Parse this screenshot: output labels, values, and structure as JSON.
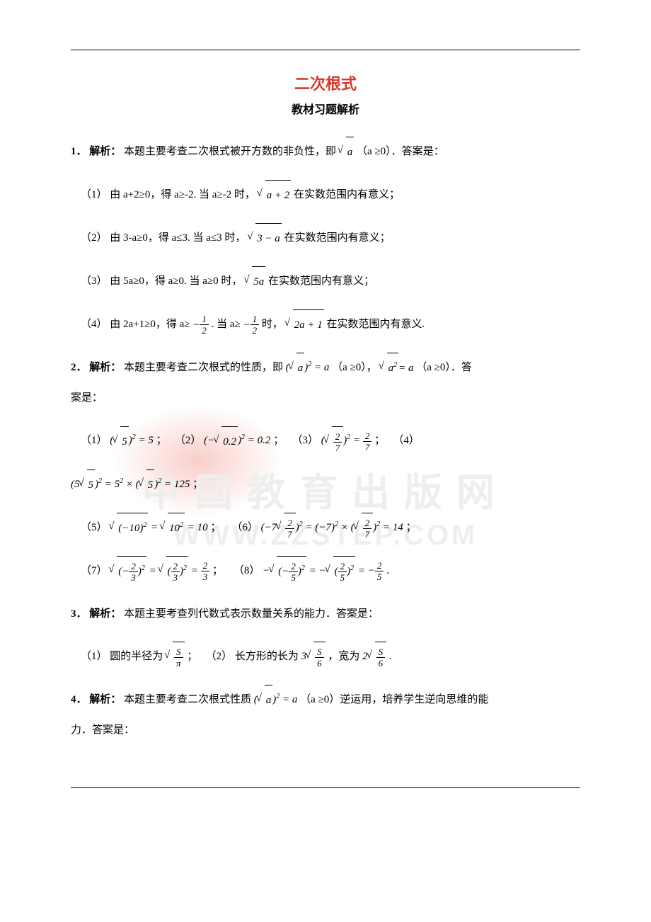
{
  "title": "二次根式",
  "subtitle": "教材习题解析",
  "colors": {
    "title": "#d83a2a",
    "text": "#000000",
    "background": "#ffffff",
    "watermark": "#eeeeee",
    "red_glow": "rgba(230,60,40,0.25)"
  },
  "typography": {
    "title_fontsize": 22,
    "subtitle_fontsize": 16,
    "body_fontsize": 15,
    "body_line_height": 2.8,
    "font_family": "SimSun / Times New Roman"
  },
  "watermark": {
    "cn_text": "中国教育出版网",
    "url_text": "WWW.ZZSTEP.COM"
  },
  "q1": {
    "head_num": "1．",
    "head_label": "解析：",
    "head_text_before": "本题主要考查二次根式被开方数的非负性，即",
    "head_expr": "√a",
    "head_text_after": "（a ≥0）．答案是：",
    "items": [
      {
        "idx": "（1）",
        "text_a": "由 a+2≥0，得 a≥-2. 当 a≥-2 时，",
        "expr": "√(a+2)",
        "text_b": " 在实数范围内有意义；"
      },
      {
        "idx": "（2）",
        "text_a": "由 3-a≥0，得 a≤3. 当 a≤3 时，",
        "expr": "√(3−a)",
        "text_b": " 在实数范围内有意义；"
      },
      {
        "idx": "（3）",
        "text_a": "由 5a≥0，得 a≥0. 当 a≥0 时，",
        "expr": "√(5a)",
        "text_b": " 在实数范围内有意义；"
      },
      {
        "idx": "（4）",
        "text_a": "由 2a+1≥0，得 a≥",
        "frac1": {
          "num": "1",
          "den": "2",
          "neg": "−"
        },
        "text_mid": ". 当 a≥",
        "frac2": {
          "num": "1",
          "den": "2",
          "neg": "−"
        },
        "text_b": " 时，",
        "expr": "√(2a+1)",
        "text_c": " 在实数范围内有意义."
      }
    ]
  },
  "q2": {
    "head_num": "2．",
    "head_label": "解析：",
    "head_text_before": "本题主要考查二次根式的性质，即",
    "prop1": "(√a)² = a",
    "cond1": "（a ≥0），",
    "prop2": "√(a²) = a",
    "cond2": "（a ≥0）．答",
    "head_tail": "案是：",
    "row1": [
      {
        "idx": "（1）",
        "expr": "(√5)² = 5",
        "sep": "；"
      },
      {
        "idx": "（2）",
        "expr": "(−√0.2)² = 0.2",
        "sep": "；"
      },
      {
        "idx": "（3）",
        "expr": "(√(2/7))² = 2/7",
        "sep": "；"
      },
      {
        "idx": "（4）",
        "expr": "",
        "sep": ""
      }
    ],
    "row1b": {
      "expr": "(5√5)² = 5² × (√5)² = 125",
      "sep": "；"
    },
    "row2": [
      {
        "idx": "（5）",
        "expr": "√((−10)²) = √(10²) = 10",
        "sep": "；"
      },
      {
        "idx": "（6）",
        "expr": "(−7√(2/7))² = (−7)² × (√(2/7))² = 14",
        "sep": "；"
      }
    ],
    "row3": [
      {
        "idx": "（7）",
        "expr": "√((−2/3)²) = √((2/3)²) = 2/3",
        "sep": "；"
      },
      {
        "idx": "（8）",
        "expr": "−√((−2/5)²) = −√((2/5)²) = −2/5",
        "sep": "."
      }
    ]
  },
  "q3": {
    "head_num": "3．",
    "head_label": "解析：",
    "head_text": "本题主要考查列代数式表示数量关系的能力．答案是：",
    "items": [
      {
        "idx": "（1）",
        "text": "圆的半径为",
        "expr": "√(S/π)",
        "sep": "；"
      },
      {
        "idx": "（2）",
        "text": "长方形的长为",
        "expr1": "3√(S/6)",
        "mid": "，宽为",
        "expr2": "2√(S/6)",
        "sep": "."
      }
    ]
  },
  "q4": {
    "head_num": "4．",
    "head_label": "解析：",
    "head_text_before": "本题主要考查二次根式性质",
    "prop": "(√a)² = a",
    "cond": "（a ≥0）逆运用，培养学生逆向思维的能",
    "tail": "力．答案是："
  }
}
